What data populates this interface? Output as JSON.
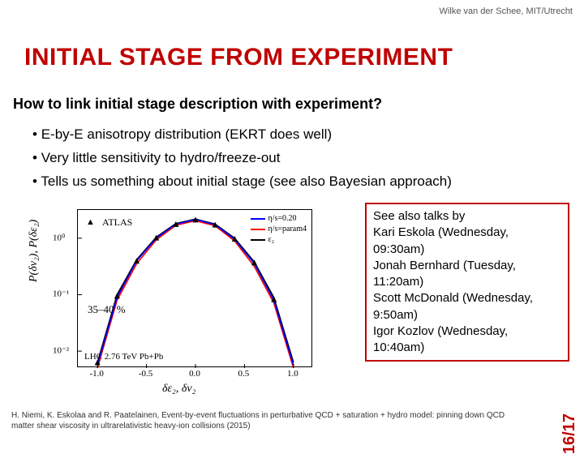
{
  "author": "Wilke van der Schee, MIT/Utrecht",
  "title": "INITIAL STAGE FROM EXPERIMENT",
  "question": "How to link initial stage description with experiment?",
  "bullets": [
    "E-by-E anisotropy distribution (EKRT does well)",
    "Very little sensitivity to hydro/freeze-out",
    "Tells us something about initial stage (see also Bayesian approach)"
  ],
  "chart": {
    "type": "line",
    "ylabel": "P(δv₂), P(δε₂)",
    "xlabel": "δε₂, δv₂",
    "xticks": [
      -1.0,
      -0.5,
      0.0,
      0.5,
      1.0
    ],
    "xlim": [
      -1.2,
      1.2
    ],
    "ylim_log": [
      -2.3,
      0.5
    ],
    "yticks_labels": [
      "10⁻²",
      "10⁻¹",
      "10⁰"
    ],
    "yticks_log": [
      -2,
      -1,
      0
    ],
    "atlas_label": "ATLAS",
    "range_label": "35–40 %",
    "lhc_label": "LHC 2.76 TeV Pb+Pb",
    "legend": [
      {
        "label": "η/s=0.20",
        "color": "#0000ff"
      },
      {
        "label": "η/s=param4",
        "color": "#ff0000"
      },
      {
        "label": "ε₂",
        "color": "#000000"
      }
    ],
    "curves": {
      "x": [
        -1.0,
        -0.8,
        -0.6,
        -0.4,
        -0.2,
        0.0,
        0.2,
        0.4,
        0.6,
        0.8,
        1.0
      ],
      "blue_log": [
        -2.25,
        -1.05,
        -0.4,
        0.0,
        0.25,
        0.33,
        0.24,
        -0.02,
        -0.45,
        -1.1,
        -2.25
      ],
      "red_log": [
        -2.3,
        -1.1,
        -0.45,
        -0.03,
        0.23,
        0.31,
        0.22,
        -0.05,
        -0.5,
        -1.15,
        -2.3
      ],
      "blk_log": [
        -2.2,
        -1.0,
        -0.38,
        0.02,
        0.26,
        0.34,
        0.25,
        0.0,
        -0.42,
        -1.05,
        -2.2
      ],
      "data_log": [
        -2.2,
        -1.02,
        -0.4,
        0.01,
        0.25,
        0.33,
        0.24,
        -0.01,
        -0.43,
        -1.08,
        null
      ]
    },
    "colors": {
      "blue": "#0000ff",
      "red": "#ff0000",
      "black": "#000000"
    }
  },
  "talks": {
    "header": "See also talks by",
    "items": [
      "Kari Eskola (Wednesday, 09:30am)",
      "Jonah Bernhard (Tuesday, 11:20am)",
      "Scott McDonald (Wednesday, 9:50am)",
      "Igor Kozlov (Wednesday, 10:40am)"
    ]
  },
  "page_num": "16/17",
  "citation": "H. Niemi, K. Eskolaa and R. Paatelainen, Event-by-event fluctuations in perturbative QCD + saturation + hydro model: pinning down QCD matter shear viscosity in ultrarelativistic heavy-ion collisions (2015)"
}
